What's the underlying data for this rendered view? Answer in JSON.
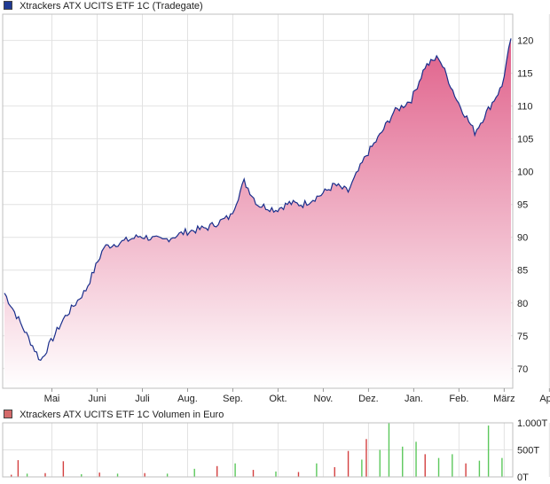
{
  "colors": {
    "line": "#1a2f8c",
    "fill_top": "#e0608a",
    "fill_bottom": "#ffffff",
    "vol_up": "#5cc85c",
    "vol_down": "#d44040",
    "grid": "#e2e2e2",
    "frame": "#bfbfbf"
  },
  "chart_data": [
    {
      "type": "area",
      "legend": "Xtrackers ATX UCITS ETF 1C (Tradegate)",
      "legend_swatch": "#1f3a93",
      "x_tick_labels": [
        "Mai",
        "Juni",
        "Juli",
        "Aug.",
        "Sep.",
        "Okt.",
        "Nov.",
        "Dez.",
        "Jan.",
        "Feb.",
        "März",
        "April"
      ],
      "y_tick_labels": [
        "70",
        "75",
        "80",
        "85",
        "90",
        "95",
        "100",
        "105",
        "110",
        "115",
        "120"
      ],
      "ylim": [
        67,
        124
      ],
      "grid": true,
      "x": [
        0,
        0.8,
        1.3,
        1.8,
        2.2,
        2.6,
        3.0,
        3.5,
        4.0,
        4.5,
        5.0,
        5.3,
        5.6,
        6.0,
        6.3,
        6.6,
        7.0,
        7.3,
        7.6,
        8.0,
        8.3,
        8.6,
        9.0,
        9.3,
        9.6,
        10.0,
        10.4,
        10.7,
        11.0,
        11.2
      ],
      "values": [
        81.5,
        71.2,
        77.5,
        82.0,
        88.5,
        89.3,
        90.2,
        89.5,
        90.8,
        91.5,
        93.2,
        98.5,
        95.0,
        94.2,
        95.2,
        95.0,
        96.5,
        98.0,
        97.0,
        102.5,
        105.5,
        109.0,
        111.0,
        116.0,
        117.5,
        111.0,
        106.0,
        109.5,
        113.0,
        120.3
      ]
    },
    {
      "type": "bar",
      "legend": "Xtrackers ATX UCITS ETF 1C Volumen in Euro",
      "legend_swatch": "#d46a6a",
      "y_tick_labels": [
        "1.000T",
        "500T",
        "0T"
      ],
      "ylim": [
        0,
        1000
      ],
      "bars": [
        {
          "x": 0.15,
          "value": 40,
          "dir": "down"
        },
        {
          "x": 0.3,
          "value": 310,
          "dir": "down"
        },
        {
          "x": 0.5,
          "value": 60,
          "dir": "up"
        },
        {
          "x": 0.9,
          "value": 70,
          "dir": "down"
        },
        {
          "x": 1.3,
          "value": 290,
          "dir": "down"
        },
        {
          "x": 1.7,
          "value": 50,
          "dir": "up"
        },
        {
          "x": 2.1,
          "value": 80,
          "dir": "down"
        },
        {
          "x": 2.5,
          "value": 60,
          "dir": "up"
        },
        {
          "x": 3.1,
          "value": 70,
          "dir": "down"
        },
        {
          "x": 3.6,
          "value": 60,
          "dir": "up"
        },
        {
          "x": 4.2,
          "value": 150,
          "dir": "up"
        },
        {
          "x": 4.7,
          "value": 200,
          "dir": "down"
        },
        {
          "x": 5.1,
          "value": 250,
          "dir": "up"
        },
        {
          "x": 5.5,
          "value": 130,
          "dir": "down"
        },
        {
          "x": 6.0,
          "value": 100,
          "dir": "up"
        },
        {
          "x": 6.5,
          "value": 90,
          "dir": "down"
        },
        {
          "x": 6.9,
          "value": 250,
          "dir": "up"
        },
        {
          "x": 7.3,
          "value": 180,
          "dir": "down"
        },
        {
          "x": 7.6,
          "value": 480,
          "dir": "down"
        },
        {
          "x": 7.9,
          "value": 320,
          "dir": "up"
        },
        {
          "x": 8.0,
          "value": 700,
          "dir": "down"
        },
        {
          "x": 8.3,
          "value": 500,
          "dir": "up"
        },
        {
          "x": 8.5,
          "value": 1000,
          "dir": "up"
        },
        {
          "x": 8.8,
          "value": 560,
          "dir": "up"
        },
        {
          "x": 9.1,
          "value": 650,
          "dir": "up"
        },
        {
          "x": 9.3,
          "value": 420,
          "dir": "down"
        },
        {
          "x": 9.6,
          "value": 350,
          "dir": "up"
        },
        {
          "x": 9.9,
          "value": 420,
          "dir": "up"
        },
        {
          "x": 10.2,
          "value": 250,
          "dir": "down"
        },
        {
          "x": 10.5,
          "value": 300,
          "dir": "up"
        },
        {
          "x": 10.7,
          "value": 950,
          "dir": "up"
        },
        {
          "x": 11.0,
          "value": 350,
          "dir": "up"
        }
      ]
    }
  ]
}
